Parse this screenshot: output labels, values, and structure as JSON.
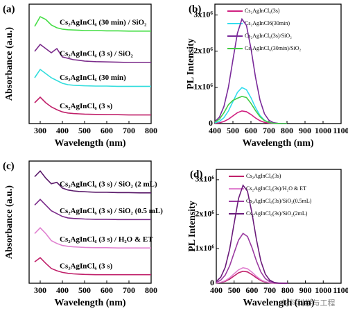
{
  "chart_data": [
    {
      "type": "line",
      "panel_label": "(a)",
      "x_label": "Wavelength (nm)",
      "y_label": "Absorbance (a.u.)",
      "legend": "inline",
      "x": [
        275,
        300,
        325,
        350,
        375,
        400,
        425,
        450,
        475,
        500,
        550,
        600,
        650,
        700,
        750,
        800
      ],
      "xlim": [
        250,
        800
      ],
      "xticks": [
        300,
        400,
        500,
        600,
        700,
        800
      ],
      "ylim": [
        0,
        4.3
      ],
      "series": [
        {
          "name": "Cs₂AgInCl₆ (30 min) / SiO₂",
          "color": "#44dd44",
          "values": [
            3.5,
            3.85,
            3.75,
            3.55,
            3.45,
            3.4,
            3.38,
            3.37,
            3.36,
            3.35,
            3.35,
            3.34,
            3.34,
            3.33,
            3.33,
            3.33
          ]
        },
        {
          "name": "Cs₂AgInCl₆ (3 s) / SiO₂",
          "color": "#7a2a8a",
          "values": [
            2.6,
            2.85,
            2.7,
            2.55,
            2.7,
            2.4,
            2.35,
            2.3,
            2.28,
            2.25,
            2.23,
            2.22,
            2.21,
            2.2,
            2.2,
            2.2
          ]
        },
        {
          "name": "Cs₂AgInCl₆ (30 min)",
          "color": "#33dddd",
          "values": [
            1.65,
            1.95,
            1.8,
            1.65,
            1.55,
            1.45,
            1.4,
            1.38,
            1.37,
            1.36,
            1.35,
            1.35,
            1.34,
            1.34,
            1.34,
            1.34
          ]
        },
        {
          "name": "Cs₂AgInCl₆ (3 s)",
          "color": "#c0206a",
          "values": [
            0.75,
            0.95,
            0.75,
            0.6,
            0.5,
            0.42,
            0.38,
            0.36,
            0.35,
            0.34,
            0.33,
            0.32,
            0.32,
            0.31,
            0.31,
            0.31
          ]
        }
      ]
    },
    {
      "type": "line",
      "panel_label": "(b)",
      "x_label": "Wavelength (nm)",
      "y_label": "PL Intensity",
      "legend": "upper left",
      "x": [
        400,
        425,
        450,
        475,
        500,
        525,
        550,
        575,
        600,
        625,
        650,
        675,
        700,
        725,
        750,
        775,
        800
      ],
      "xlim": [
        400,
        1100
      ],
      "xticks": [
        400,
        500,
        600,
        700,
        800,
        900,
        1000,
        1100
      ],
      "ylim": [
        0,
        3300000
      ],
      "yticks": [
        0,
        {
          "value": 1000000,
          "label": "1x10⁶"
        },
        {
          "value": 2000000,
          "label": "2x10⁶"
        },
        {
          "value": 3000000,
          "label": "3x10⁶"
        }
      ],
      "series": [
        {
          "name": "Cs₂AgInCl₆(3s)",
          "color": "#d02080",
          "values": [
            7000,
            21000,
            57000,
            121000,
            212000,
            302000,
            349000,
            328000,
            251000,
            156000,
            79000,
            33000,
            11000,
            3000,
            1000,
            0,
            0
          ]
        },
        {
          "name": "Cs₂AgInCl6(30min)",
          "color": "#33ddee",
          "values": [
            19000,
            61000,
            162000,
            347000,
            607000,
            862000,
            996000,
            936000,
            716000,
            445000,
            225000,
            93000,
            31000,
            8000,
            2000,
            0,
            0
          ]
        },
        {
          "name": "Cs₂AgInCl₆(3s)/SiO₂",
          "color": "#7a2a9a",
          "values": [
            55000,
            177000,
            470000,
            1006000,
            1760000,
            2500000,
            2888000,
            2714000,
            2076000,
            1290000,
            653000,
            270000,
            90000,
            24000,
            6000,
            1000,
            0
          ]
        },
        {
          "name": "Cs₂AgInCl₆(30min)/SiO₂",
          "color": "#44cc44",
          "values": [
            40000,
            120000,
            300000,
            520000,
            640000,
            700000,
            750000,
            720000,
            560000,
            360000,
            190000,
            80000,
            30000,
            10000,
            3000,
            0,
            0
          ]
        }
      ]
    },
    {
      "type": "line",
      "panel_label": "(c)",
      "x_label": "Wavelength (nm)",
      "y_label": "Absorbance (a.u.)",
      "legend": "inline",
      "x": [
        275,
        300,
        325,
        350,
        375,
        400,
        425,
        450,
        475,
        500,
        550,
        600,
        650,
        700,
        750,
        800
      ],
      "xlim": [
        250,
        800
      ],
      "xticks": [
        300,
        400,
        500,
        600,
        700,
        800
      ],
      "ylim": [
        0,
        4.3
      ],
      "series": [
        {
          "name": "Cs₂AgInCl₆ (3 s) / SiO₂ (2 mL)",
          "color": "#5a1a6a",
          "values": [
            3.75,
            3.95,
            3.7,
            3.5,
            3.55,
            3.35,
            3.28,
            3.25,
            3.23,
            3.22,
            3.2,
            3.2,
            3.19,
            3.19,
            3.18,
            3.18
          ]
        },
        {
          "name": "Cs₂AgInCl₆ (3 s) / SiO₂ (0.5 mL)",
          "color": "#7a2a8a",
          "values": [
            2.75,
            2.95,
            2.75,
            2.55,
            2.45,
            2.35,
            2.3,
            2.28,
            2.27,
            2.26,
            2.25,
            2.25,
            2.24,
            2.24,
            2.24,
            2.24
          ]
        },
        {
          "name": "Cs₂AgInCl₆ (3 s) / H₂O & ET",
          "color": "#e080d0",
          "values": [
            1.75,
            1.95,
            1.75,
            1.5,
            1.4,
            1.33,
            1.3,
            1.28,
            1.27,
            1.26,
            1.25,
            1.25,
            1.24,
            1.24,
            1.24,
            1.24
          ]
        },
        {
          "name": "Cs₂AgInCl₆ (3 s)",
          "color": "#c0206a",
          "values": [
            0.75,
            0.9,
            0.7,
            0.52,
            0.44,
            0.38,
            0.35,
            0.33,
            0.32,
            0.31,
            0.3,
            0.3,
            0.3,
            0.3,
            0.3,
            0.3
          ]
        }
      ]
    },
    {
      "type": "line",
      "panel_label": "(d)",
      "x_label": "Wavelength (nm)",
      "y_label": "PL Intensity",
      "legend": "upper left",
      "x": [
        400,
        425,
        450,
        475,
        500,
        525,
        550,
        575,
        600,
        625,
        650,
        675,
        700,
        725,
        750,
        775,
        800
      ],
      "xlim": [
        400,
        1100
      ],
      "xticks": [
        400,
        500,
        600,
        700,
        800,
        900,
        1000,
        1100
      ],
      "ylim": [
        0,
        3300000
      ],
      "yticks": [
        0,
        {
          "value": 1000000,
          "label": "1x10⁶"
        },
        {
          "value": 2000000,
          "label": "2x10⁶"
        },
        {
          "value": 3000000,
          "label": "3x10⁶"
        }
      ],
      "series": [
        {
          "name": "Cs₂AgInCl₆(3s)",
          "color": "#c0206a",
          "values": [
            7000,
            21000,
            57000,
            121000,
            212000,
            302000,
            349000,
            328000,
            251000,
            156000,
            79000,
            33000,
            11000,
            3000,
            1000,
            0,
            0
          ]
        },
        {
          "name": "Cs₂AgInCl₆(3s)/H₂O & ET",
          "color": "#e080d0",
          "values": [
            9000,
            27000,
            73000,
            156000,
            273000,
            388000,
            448000,
            421000,
            322000,
            200000,
            101000,
            42000,
            14000,
            4000,
            1000,
            0,
            0
          ]
        },
        {
          "name": "Cs₂AgInCl₆(3s)/SiO₂(0.5mL)",
          "color": "#9a3aa0",
          "values": [
            28000,
            88000,
            235000,
            503000,
            880000,
            1250000,
            1444000,
            1357000,
            1038000,
            645000,
            326000,
            135000,
            45000,
            12000,
            3000,
            0,
            0
          ]
        },
        {
          "name": "Cs₂AgInCl₆(3s)/SiO₂(2mL)",
          "color": "#6a1a7a",
          "values": [
            54000,
            174000,
            462000,
            989000,
            1730000,
            2457000,
            2839000,
            2668000,
            2041000,
            1268000,
            641000,
            265000,
            88000,
            24000,
            5000,
            1000,
            0
          ]
        }
      ]
    }
  ],
  "watermark": "材料科学与工程"
}
